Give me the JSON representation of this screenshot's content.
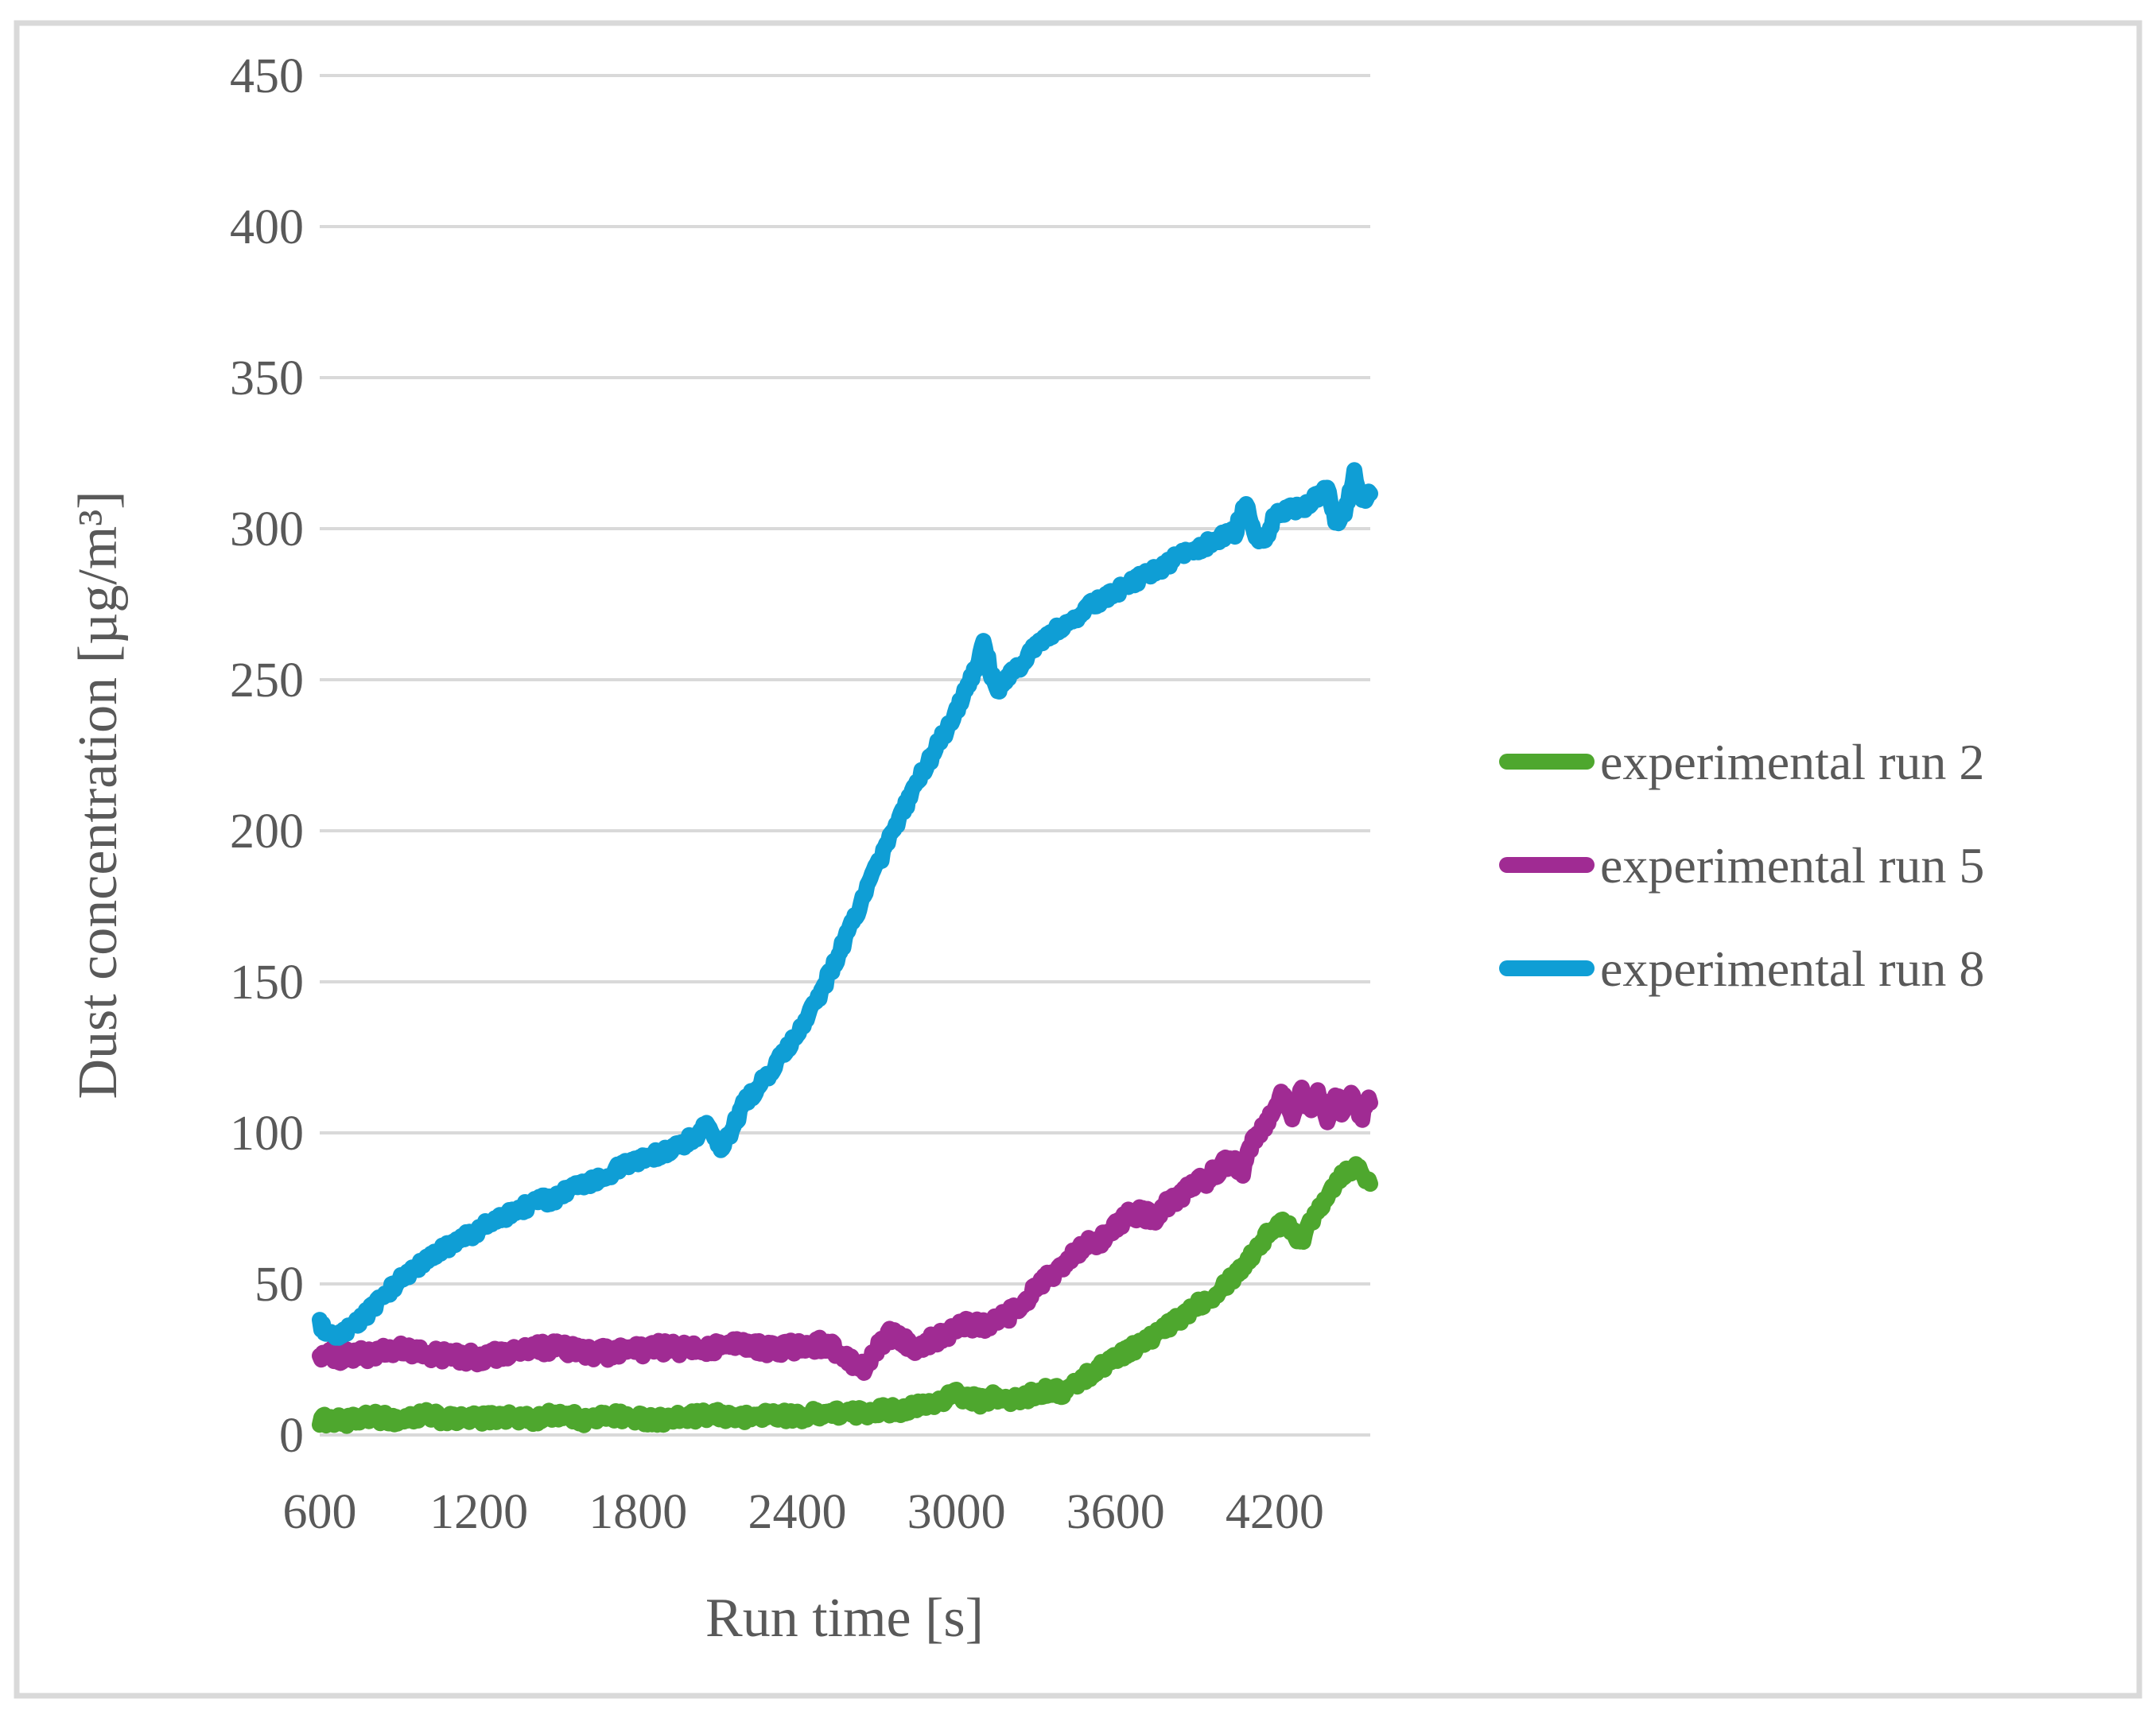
{
  "chart_data": {
    "type": "line",
    "title": "",
    "xlabel": "Run time [s]",
    "ylabel": "Dust concentration [µg/m³]",
    "xlim": [
      600,
      4560
    ],
    "ylim": [
      0,
      450
    ],
    "x_ticks": [
      600,
      1200,
      1800,
      2400,
      3000,
      3600,
      4200
    ],
    "y_ticks": [
      0,
      50,
      100,
      150,
      200,
      250,
      300,
      350,
      400,
      450
    ],
    "grid": "horizontal-only",
    "legend_position": "right-middle",
    "series": [
      {
        "name": "experimental run 2",
        "color": "#4EA72E",
        "noise_amplitude": 1.9,
        "trend": [
          [
            600,
            5
          ],
          [
            700,
            4.5
          ],
          [
            800,
            6
          ],
          [
            900,
            5
          ],
          [
            1000,
            6.5
          ],
          [
            1100,
            5
          ],
          [
            1200,
            5.5
          ],
          [
            1300,
            6
          ],
          [
            1400,
            5
          ],
          [
            1500,
            7
          ],
          [
            1600,
            5
          ],
          [
            1700,
            6.5
          ],
          [
            1800,
            5.5
          ],
          [
            1900,
            5
          ],
          [
            2000,
            6
          ],
          [
            2100,
            6.5
          ],
          [
            2200,
            5.5
          ],
          [
            2300,
            7
          ],
          [
            2400,
            6
          ],
          [
            2500,
            7.5
          ],
          [
            2600,
            7
          ],
          [
            2700,
            8
          ],
          [
            2800,
            8.5
          ],
          [
            2900,
            10
          ],
          [
            2950,
            12
          ],
          [
            3000,
            13.5
          ],
          [
            3050,
            12
          ],
          [
            3100,
            11
          ],
          [
            3150,
            13
          ],
          [
            3200,
            11
          ],
          [
            3250,
            12.5
          ],
          [
            3300,
            13.5
          ],
          [
            3350,
            15
          ],
          [
            3400,
            14
          ],
          [
            3450,
            17
          ],
          [
            3500,
            20
          ],
          [
            3550,
            23
          ],
          [
            3600,
            26
          ],
          [
            3650,
            28
          ],
          [
            3700,
            30.5
          ],
          [
            3750,
            33
          ],
          [
            3800,
            36
          ],
          [
            3850,
            39
          ],
          [
            3900,
            43
          ],
          [
            3950,
            45
          ],
          [
            4000,
            49
          ],
          [
            4050,
            53
          ],
          [
            4100,
            58
          ],
          [
            4150,
            64
          ],
          [
            4200,
            69
          ],
          [
            4250,
            70
          ],
          [
            4300,
            64
          ],
          [
            4350,
            73
          ],
          [
            4400,
            80
          ],
          [
            4450,
            86
          ],
          [
            4500,
            89
          ],
          [
            4530,
            87
          ],
          [
            4560,
            84
          ]
        ]
      },
      {
        "name": "experimental run 5",
        "color": "#A02B93",
        "noise_amplitude": 2.4,
        "trend": [
          [
            600,
            27
          ],
          [
            700,
            26
          ],
          [
            800,
            27
          ],
          [
            900,
            28
          ],
          [
            1000,
            27
          ],
          [
            1100,
            26
          ],
          [
            1200,
            25.5
          ],
          [
            1300,
            27
          ],
          [
            1400,
            28.5
          ],
          [
            1500,
            29
          ],
          [
            1600,
            27.5
          ],
          [
            1700,
            27
          ],
          [
            1800,
            28
          ],
          [
            1900,
            29
          ],
          [
            2000,
            28
          ],
          [
            2100,
            29.5
          ],
          [
            2200,
            30
          ],
          [
            2300,
            28.5
          ],
          [
            2400,
            29
          ],
          [
            2500,
            30
          ],
          [
            2550,
            28
          ],
          [
            2600,
            25
          ],
          [
            2650,
            22
          ],
          [
            2700,
            28
          ],
          [
            2750,
            33
          ],
          [
            2800,
            31
          ],
          [
            2850,
            29
          ],
          [
            2900,
            31
          ],
          [
            2950,
            33
          ],
          [
            3000,
            35
          ],
          [
            3050,
            37
          ],
          [
            3100,
            36
          ],
          [
            3150,
            38
          ],
          [
            3200,
            40
          ],
          [
            3250,
            44
          ],
          [
            3300,
            48
          ],
          [
            3350,
            52
          ],
          [
            3400,
            56
          ],
          [
            3450,
            60
          ],
          [
            3500,
            63
          ],
          [
            3550,
            65
          ],
          [
            3600,
            69
          ],
          [
            3650,
            73
          ],
          [
            3700,
            73
          ],
          [
            3750,
            72
          ],
          [
            3800,
            77
          ],
          [
            3850,
            80
          ],
          [
            3900,
            83
          ],
          [
            3950,
            85
          ],
          [
            4000,
            89
          ],
          [
            4050,
            92
          ],
          [
            4075,
            86
          ],
          [
            4100,
            95
          ],
          [
            4150,
            101
          ],
          [
            4200,
            108
          ],
          [
            4230,
            113
          ],
          [
            4260,
            104
          ],
          [
            4300,
            115
          ],
          [
            4330,
            108
          ],
          [
            4360,
            113
          ],
          [
            4400,
            105
          ],
          [
            4430,
            112
          ],
          [
            4460,
            107
          ],
          [
            4490,
            113
          ],
          [
            4520,
            104
          ],
          [
            4550,
            110
          ]
        ]
      },
      {
        "name": "experimental run 8",
        "color": "#0F9ED5",
        "noise_amplitude": 1.7,
        "trend": [
          [
            600,
            37
          ],
          [
            630,
            33
          ],
          [
            660,
            31.5
          ],
          [
            700,
            34
          ],
          [
            750,
            38
          ],
          [
            800,
            42
          ],
          [
            850,
            47
          ],
          [
            900,
            51
          ],
          [
            950,
            54.5
          ],
          [
            1000,
            57.5
          ],
          [
            1060,
            61
          ],
          [
            1120,
            64
          ],
          [
            1180,
            67
          ],
          [
            1240,
            70
          ],
          [
            1300,
            72.5
          ],
          [
            1360,
            75
          ],
          [
            1420,
            77.5
          ],
          [
            1480,
            78
          ],
          [
            1540,
            81
          ],
          [
            1600,
            83.5
          ],
          [
            1660,
            85
          ],
          [
            1720,
            88
          ],
          [
            1780,
            90
          ],
          [
            1840,
            92
          ],
          [
            1900,
            93.5
          ],
          [
            1960,
            96
          ],
          [
            2020,
            99
          ],
          [
            2060,
            103
          ],
          [
            2105,
            94.5
          ],
          [
            2150,
            100
          ],
          [
            2195,
            109
          ],
          [
            2240,
            114
          ],
          [
            2290,
            119
          ],
          [
            2340,
            125
          ],
          [
            2390,
            131
          ],
          [
            2440,
            138
          ],
          [
            2490,
            147
          ],
          [
            2540,
            156
          ],
          [
            2590,
            166
          ],
          [
            2640,
            176
          ],
          [
            2690,
            186
          ],
          [
            2740,
            196
          ],
          [
            2790,
            205
          ],
          [
            2840,
            214
          ],
          [
            2890,
            222
          ],
          [
            2940,
            230
          ],
          [
            2990,
            238
          ],
          [
            3040,
            247
          ],
          [
            3080,
            256
          ],
          [
            3105,
            263
          ],
          [
            3130,
            252
          ],
          [
            3160,
            247
          ],
          [
            3190,
            250
          ],
          [
            3220,
            253
          ],
          [
            3250,
            256
          ],
          [
            3300,
            261
          ],
          [
            3350,
            265
          ],
          [
            3400,
            268
          ],
          [
            3450,
            271
          ],
          [
            3500,
            274
          ],
          [
            3550,
            277
          ],
          [
            3600,
            279
          ],
          [
            3650,
            282
          ],
          [
            3700,
            284
          ],
          [
            3750,
            286
          ],
          [
            3800,
            289
          ],
          [
            3850,
            291
          ],
          [
            3900,
            293
          ],
          [
            3950,
            295
          ],
          [
            4000,
            297
          ],
          [
            4050,
            299
          ],
          [
            4090,
            308
          ],
          [
            4130,
            298
          ],
          [
            4160,
            296
          ],
          [
            4200,
            304
          ],
          [
            4250,
            306
          ],
          [
            4300,
            307
          ],
          [
            4350,
            310
          ],
          [
            4400,
            314
          ],
          [
            4430,
            302
          ],
          [
            4460,
            305
          ],
          [
            4500,
            318
          ],
          [
            4530,
            308
          ],
          [
            4560,
            313
          ]
        ]
      }
    ]
  },
  "styles": {
    "background": "#FFFFFF",
    "text_color": "#595959",
    "gridline_color": "#D9D9D9",
    "border_color": "#D9D9D9"
  }
}
